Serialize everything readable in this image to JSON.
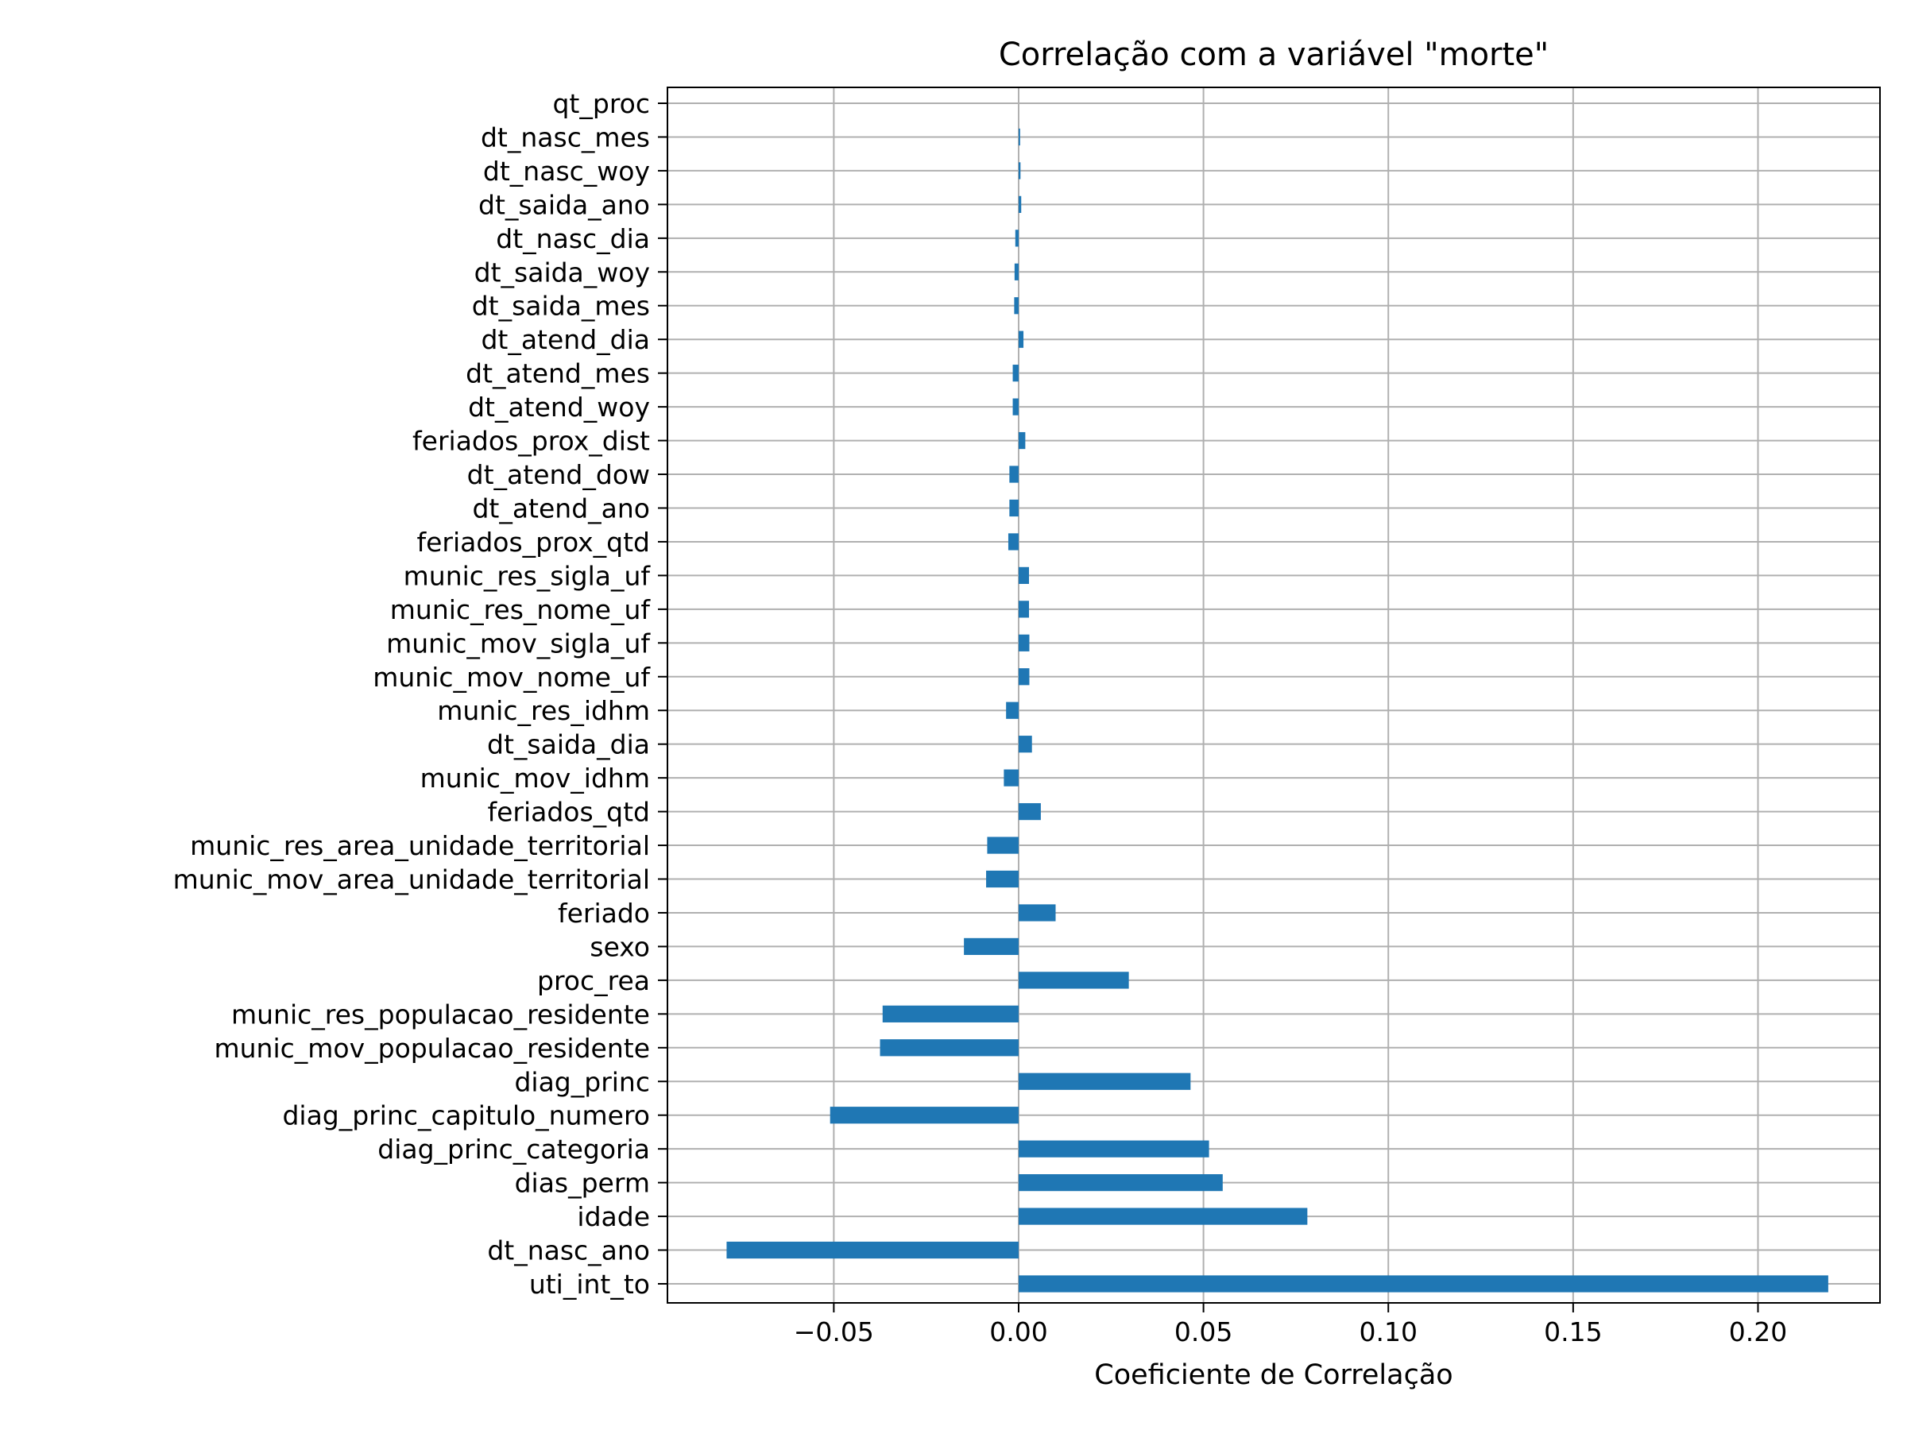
{
  "chart_data": {
    "type": "bar",
    "orientation": "horizontal",
    "title": "Correlação com a variável \"morte\"",
    "xlabel": "Coeficiente de Correlação",
    "ylabel": "",
    "xlim": [
      -0.095,
      0.233
    ],
    "x_ticks": [
      -0.05,
      0.0,
      0.05,
      0.1,
      0.15,
      0.2
    ],
    "x_tick_labels": [
      "−0.05",
      "0.00",
      "0.05",
      "0.10",
      "0.15",
      "0.20"
    ],
    "grid": true,
    "bar_color": "#1f77b4",
    "categories": [
      "qt_proc",
      "dt_nasc_mes",
      "dt_nasc_woy",
      "dt_saida_ano",
      "dt_nasc_dia",
      "dt_saida_woy",
      "dt_saida_mes",
      "dt_atend_dia",
      "dt_atend_mes",
      "dt_atend_woy",
      "feriados_prox_dist",
      "dt_atend_dow",
      "dt_atend_ano",
      "feriados_prox_qtd",
      "munic_res_sigla_uf",
      "munic_res_nome_uf",
      "munic_mov_sigla_uf",
      "munic_mov_nome_uf",
      "munic_res_idhm",
      "dt_saida_dia",
      "munic_mov_idhm",
      "feriados_qtd",
      "munic_res_area_unidade_territorial",
      "munic_mov_area_unidade_territorial",
      "feriado",
      "sexo",
      "proc_rea",
      "munic_res_populacao_residente",
      "munic_mov_populacao_residente",
      "diag_princ",
      "diag_princ_capitulo_numero",
      "diag_princ_categoria",
      "dias_perm",
      "idade",
      "dt_nasc_ano",
      "uti_int_to"
    ],
    "values": [
      0.0,
      0.0004,
      0.0005,
      0.0007,
      -0.0009,
      -0.0011,
      -0.0012,
      0.0013,
      -0.0016,
      -0.0016,
      0.0018,
      -0.0025,
      -0.0025,
      -0.0028,
      0.0028,
      0.0028,
      0.0029,
      0.0029,
      -0.0034,
      0.0036,
      -0.004,
      0.006,
      -0.0085,
      -0.0088,
      0.01,
      -0.0148,
      0.0298,
      -0.0368,
      -0.0375,
      0.0465,
      -0.051,
      0.0515,
      0.0552,
      0.0781,
      -0.079,
      0.219
    ]
  }
}
